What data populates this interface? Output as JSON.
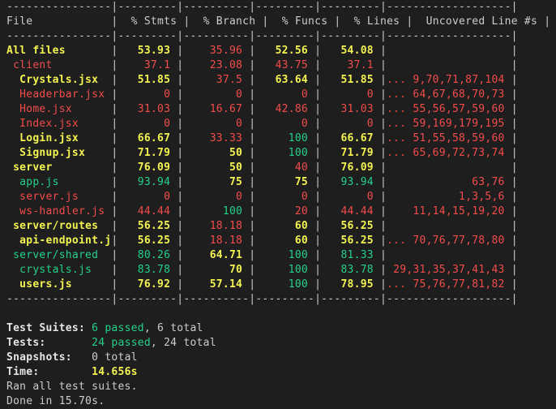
{
  "colors": {
    "background": "#1e1e1e",
    "text": "#cccccc",
    "high": "#23d18b",
    "medium": "#f3f352",
    "low": "#f14c4c"
  },
  "coverage": {
    "headers": [
      "File",
      "% Stmts",
      "% Branch",
      "% Funcs",
      "% Lines",
      "Uncovered Line #s"
    ],
    "rows": [
      {
        "file": "All files",
        "indent": 0,
        "stmts": "53.93",
        "branch": "35.96",
        "funcs": "52.56",
        "lines": "54.08",
        "uncovered": "",
        "c": {
          "file": "yellow",
          "stmts": "yellow",
          "branch": "red",
          "funcs": "yellow",
          "lines": "yellow",
          "uncovered": "red"
        }
      },
      {
        "file": "client",
        "indent": 1,
        "stmts": "37.1",
        "branch": "23.08",
        "funcs": "43.75",
        "lines": "37.1",
        "uncovered": "",
        "c": {
          "file": "red",
          "stmts": "red",
          "branch": "red",
          "funcs": "red",
          "lines": "red",
          "uncovered": "red"
        }
      },
      {
        "file": "Crystals.jsx",
        "indent": 2,
        "stmts": "51.85",
        "branch": "37.5",
        "funcs": "63.64",
        "lines": "51.85",
        "uncovered": "... 9,70,71,87,104",
        "c": {
          "file": "yellow",
          "stmts": "yellow",
          "branch": "red",
          "funcs": "yellow",
          "lines": "yellow",
          "uncovered": "red"
        }
      },
      {
        "file": "Headerbar.jsx",
        "indent": 2,
        "stmts": "0",
        "branch": "0",
        "funcs": "0",
        "lines": "0",
        "uncovered": "... 64,67,68,70,73",
        "c": {
          "file": "red",
          "stmts": "red",
          "branch": "red",
          "funcs": "red",
          "lines": "red",
          "uncovered": "red"
        }
      },
      {
        "file": "Home.jsx",
        "indent": 2,
        "stmts": "31.03",
        "branch": "16.67",
        "funcs": "42.86",
        "lines": "31.03",
        "uncovered": "... 55,56,57,59,60",
        "c": {
          "file": "red",
          "stmts": "red",
          "branch": "red",
          "funcs": "red",
          "lines": "red",
          "uncovered": "red"
        }
      },
      {
        "file": "Index.jsx",
        "indent": 2,
        "stmts": "0",
        "branch": "0",
        "funcs": "0",
        "lines": "0",
        "uncovered": "... 59,169,179,195",
        "c": {
          "file": "red",
          "stmts": "red",
          "branch": "red",
          "funcs": "red",
          "lines": "red",
          "uncovered": "red"
        }
      },
      {
        "file": "Login.jsx",
        "indent": 2,
        "stmts": "66.67",
        "branch": "33.33",
        "funcs": "100",
        "lines": "66.67",
        "uncovered": "... 51,55,58,59,60",
        "c": {
          "file": "yellow",
          "stmts": "yellow",
          "branch": "red",
          "funcs": "green",
          "lines": "yellow",
          "uncovered": "red"
        }
      },
      {
        "file": "Signup.jsx",
        "indent": 2,
        "stmts": "71.79",
        "branch": "50",
        "funcs": "100",
        "lines": "71.79",
        "uncovered": "... 65,69,72,73,74",
        "c": {
          "file": "yellow",
          "stmts": "yellow",
          "branch": "yellow",
          "funcs": "green",
          "lines": "yellow",
          "uncovered": "red"
        }
      },
      {
        "file": "server",
        "indent": 1,
        "stmts": "76.09",
        "branch": "50",
        "funcs": "40",
        "lines": "76.09",
        "uncovered": "",
        "c": {
          "file": "yellow",
          "stmts": "yellow",
          "branch": "yellow",
          "funcs": "red",
          "lines": "yellow",
          "uncovered": "red"
        }
      },
      {
        "file": "app.js",
        "indent": 2,
        "stmts": "93.94",
        "branch": "75",
        "funcs": "75",
        "lines": "93.94",
        "uncovered": "63,76",
        "c": {
          "file": "green",
          "stmts": "green",
          "branch": "yellow",
          "funcs": "yellow",
          "lines": "green",
          "uncovered": "red"
        }
      },
      {
        "file": "server.js",
        "indent": 2,
        "stmts": "0",
        "branch": "0",
        "funcs": "0",
        "lines": "0",
        "uncovered": "1,3,5,6",
        "c": {
          "file": "red",
          "stmts": "red",
          "branch": "red",
          "funcs": "red",
          "lines": "red",
          "uncovered": "red"
        }
      },
      {
        "file": "ws-handler.js",
        "indent": 2,
        "stmts": "44.44",
        "branch": "100",
        "funcs": "20",
        "lines": "44.44",
        "uncovered": "11,14,15,19,20",
        "c": {
          "file": "red",
          "stmts": "red",
          "branch": "green",
          "funcs": "red",
          "lines": "red",
          "uncovered": "red"
        }
      },
      {
        "file": "server/routes",
        "indent": 1,
        "stmts": "56.25",
        "branch": "18.18",
        "funcs": "60",
        "lines": "56.25",
        "uncovered": "",
        "c": {
          "file": "yellow",
          "stmts": "yellow",
          "branch": "red",
          "funcs": "yellow",
          "lines": "yellow",
          "uncovered": "red"
        }
      },
      {
        "file": "api-endpoint.js",
        "indent": 2,
        "stmts": "56.25",
        "branch": "18.18",
        "funcs": "60",
        "lines": "56.25",
        "uncovered": "... 70,76,77,78,80",
        "c": {
          "file": "yellow",
          "stmts": "yellow",
          "branch": "red",
          "funcs": "yellow",
          "lines": "yellow",
          "uncovered": "red"
        }
      },
      {
        "file": "server/shared",
        "indent": 1,
        "stmts": "80.26",
        "branch": "64.71",
        "funcs": "100",
        "lines": "81.33",
        "uncovered": "",
        "c": {
          "file": "green",
          "stmts": "green",
          "branch": "yellow",
          "funcs": "green",
          "lines": "green",
          "uncovered": "red"
        }
      },
      {
        "file": "crystals.js",
        "indent": 2,
        "stmts": "83.78",
        "branch": "70",
        "funcs": "100",
        "lines": "83.78",
        "uncovered": "29,31,35,37,41,43",
        "c": {
          "file": "green",
          "stmts": "green",
          "branch": "yellow",
          "funcs": "green",
          "lines": "green",
          "uncovered": "red"
        }
      },
      {
        "file": "users.js",
        "indent": 2,
        "stmts": "76.92",
        "branch": "57.14",
        "funcs": "100",
        "lines": "78.95",
        "uncovered": "... 75,76,77,81,82",
        "c": {
          "file": "yellow",
          "stmts": "yellow",
          "branch": "yellow",
          "funcs": "green",
          "lines": "yellow",
          "uncovered": "red"
        }
      }
    ]
  },
  "summary": {
    "suites_label": "Test Suites:",
    "suites_passed": "6 passed",
    "suites_total": ", 6 total",
    "tests_label": "Tests:",
    "tests_passed": "24 passed",
    "tests_total": ", 24 total",
    "snapshots_label": "Snapshots:",
    "snapshots_value": "0 total",
    "time_label": "Time:",
    "time_value": "14.656s",
    "ran_text": "Ran all test suites.",
    "done_text": "Done in 15.70s."
  }
}
